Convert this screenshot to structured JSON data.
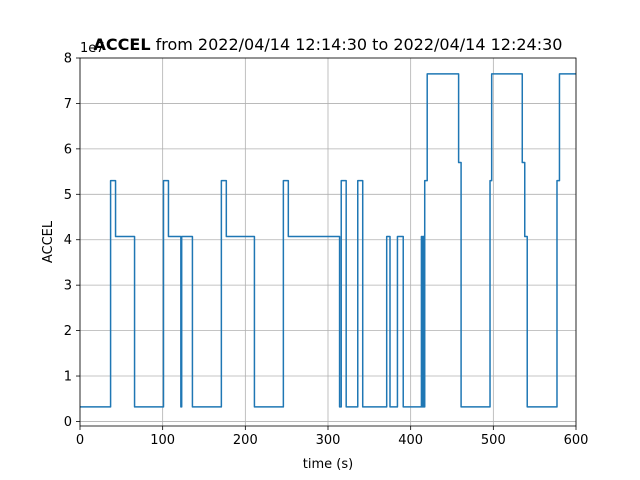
{
  "chart_data": {
    "type": "line",
    "title_bold": "ACCEL",
    "title_rest": " from 2022/04/14 12:14:30 to 2022/04/14 12:24:30",
    "xlabel": "time (s)",
    "ylabel": "ACCEL",
    "y_offset_text": "1e7",
    "xlim": [
      0,
      600
    ],
    "ylim": [
      -0.1,
      8
    ],
    "y_scale": 10000000,
    "x_ticks": [
      0,
      100,
      200,
      300,
      400,
      500,
      600
    ],
    "x_tick_labels": [
      "0",
      "100",
      "200",
      "300",
      "400",
      "500",
      "600"
    ],
    "y_ticks": [
      0,
      1,
      2,
      3,
      4,
      5,
      6,
      7,
      8
    ],
    "y_tick_labels": [
      "0",
      "1",
      "2",
      "3",
      "4",
      "5",
      "6",
      "7",
      "8"
    ],
    "grid": true,
    "line_color": "#1f77b4",
    "series": [
      {
        "step": "post",
        "x": [
          0,
          37,
          43,
          66,
          101,
          107,
          122,
          123,
          124,
          134,
          136,
          171,
          177,
          211,
          246,
          252,
          313,
          314,
          315,
          316,
          322,
          336,
          342,
          371,
          375,
          384,
          391,
          397,
          413,
          414,
          415,
          416,
          417,
          420,
          457,
          458,
          461,
          496,
          498,
          535,
          538,
          541,
          577,
          580,
          600
        ],
        "y": [
          0.32,
          5.3,
          4.07,
          0.32,
          5.3,
          4.07,
          0.32,
          4.07,
          4.07,
          4.07,
          0.32,
          5.3,
          4.07,
          0.32,
          5.3,
          4.07,
          4.07,
          0.32,
          0.32,
          5.3,
          0.32,
          5.3,
          0.32,
          4.07,
          0.32,
          4.07,
          0.32,
          0.32,
          4.07,
          0.32,
          4.07,
          0.32,
          5.3,
          7.65,
          7.65,
          5.7,
          0.32,
          5.3,
          7.65,
          5.7,
          4.07,
          0.32,
          5.3,
          7.65,
          7.65
        ]
      }
    ]
  }
}
